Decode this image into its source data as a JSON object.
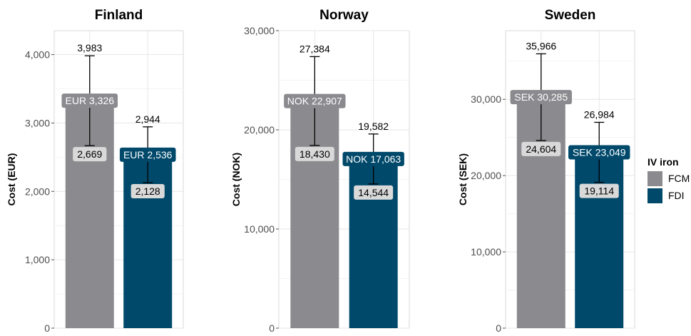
{
  "chart_data": [
    {
      "type": "bar",
      "title": "Finland",
      "ylabel": "Cost (EUR)",
      "currency": "EUR",
      "ylim": [
        0,
        4350
      ],
      "yticks": [
        0,
        1000,
        2000,
        3000,
        4000
      ],
      "ytick_labels": [
        "0",
        "1,000",
        "2,000",
        "3,000",
        "4,000"
      ],
      "series": [
        {
          "name": "FCM",
          "value": 3326,
          "value_label": "EUR 3,326",
          "lower": 2669,
          "lower_label": "2,669",
          "upper": 3983,
          "upper_label": "3,983"
        },
        {
          "name": "FDI",
          "value": 2536,
          "value_label": "EUR 2,536",
          "lower": 2128,
          "lower_label": "2,128",
          "upper": 2944,
          "upper_label": "2,944"
        }
      ]
    },
    {
      "type": "bar",
      "title": "Norway",
      "ylabel": "Cost (NOK)",
      "currency": "NOK",
      "ylim": [
        0,
        30000
      ],
      "yticks": [
        0,
        10000,
        20000,
        30000
      ],
      "ytick_labels": [
        "0",
        "10,000",
        "20,000",
        "30,000"
      ],
      "series": [
        {
          "name": "FCM",
          "value": 22907,
          "value_label": "NOK 22,907",
          "lower": 18430,
          "lower_label": "18,430",
          "upper": 27384,
          "upper_label": "27,384"
        },
        {
          "name": "FDI",
          "value": 17063,
          "value_label": "NOK 17,063",
          "lower": 14544,
          "lower_label": "14,544",
          "upper": 19582,
          "upper_label": "19,582"
        }
      ]
    },
    {
      "type": "bar",
      "title": "Sweden",
      "ylabel": "Cost (SEK)",
      "currency": "SEK",
      "ylim": [
        0,
        39000
      ],
      "yticks": [
        0,
        10000,
        20000,
        30000
      ],
      "ytick_labels": [
        "0",
        "10,000",
        "20,000",
        "30,000"
      ],
      "series": [
        {
          "name": "FCM",
          "value": 30285,
          "value_label": "SEK 30,285",
          "lower": 24604,
          "lower_label": "24,604",
          "upper": 35966,
          "upper_label": "35,966"
        },
        {
          "name": "FDI",
          "value": 23049,
          "value_label": "SEK 23,049",
          "lower": 19114,
          "lower_label": "19,114",
          "upper": 26984,
          "upper_label": "26,984"
        }
      ]
    }
  ],
  "legend": {
    "title": "IV iron",
    "position": "right",
    "items": [
      {
        "name": "FCM",
        "color": "#8b8b8f"
      },
      {
        "name": "FDI",
        "color": "#00496b"
      }
    ]
  },
  "colors": {
    "FCM": "#8b8b8f",
    "FDI": "#00496b"
  }
}
